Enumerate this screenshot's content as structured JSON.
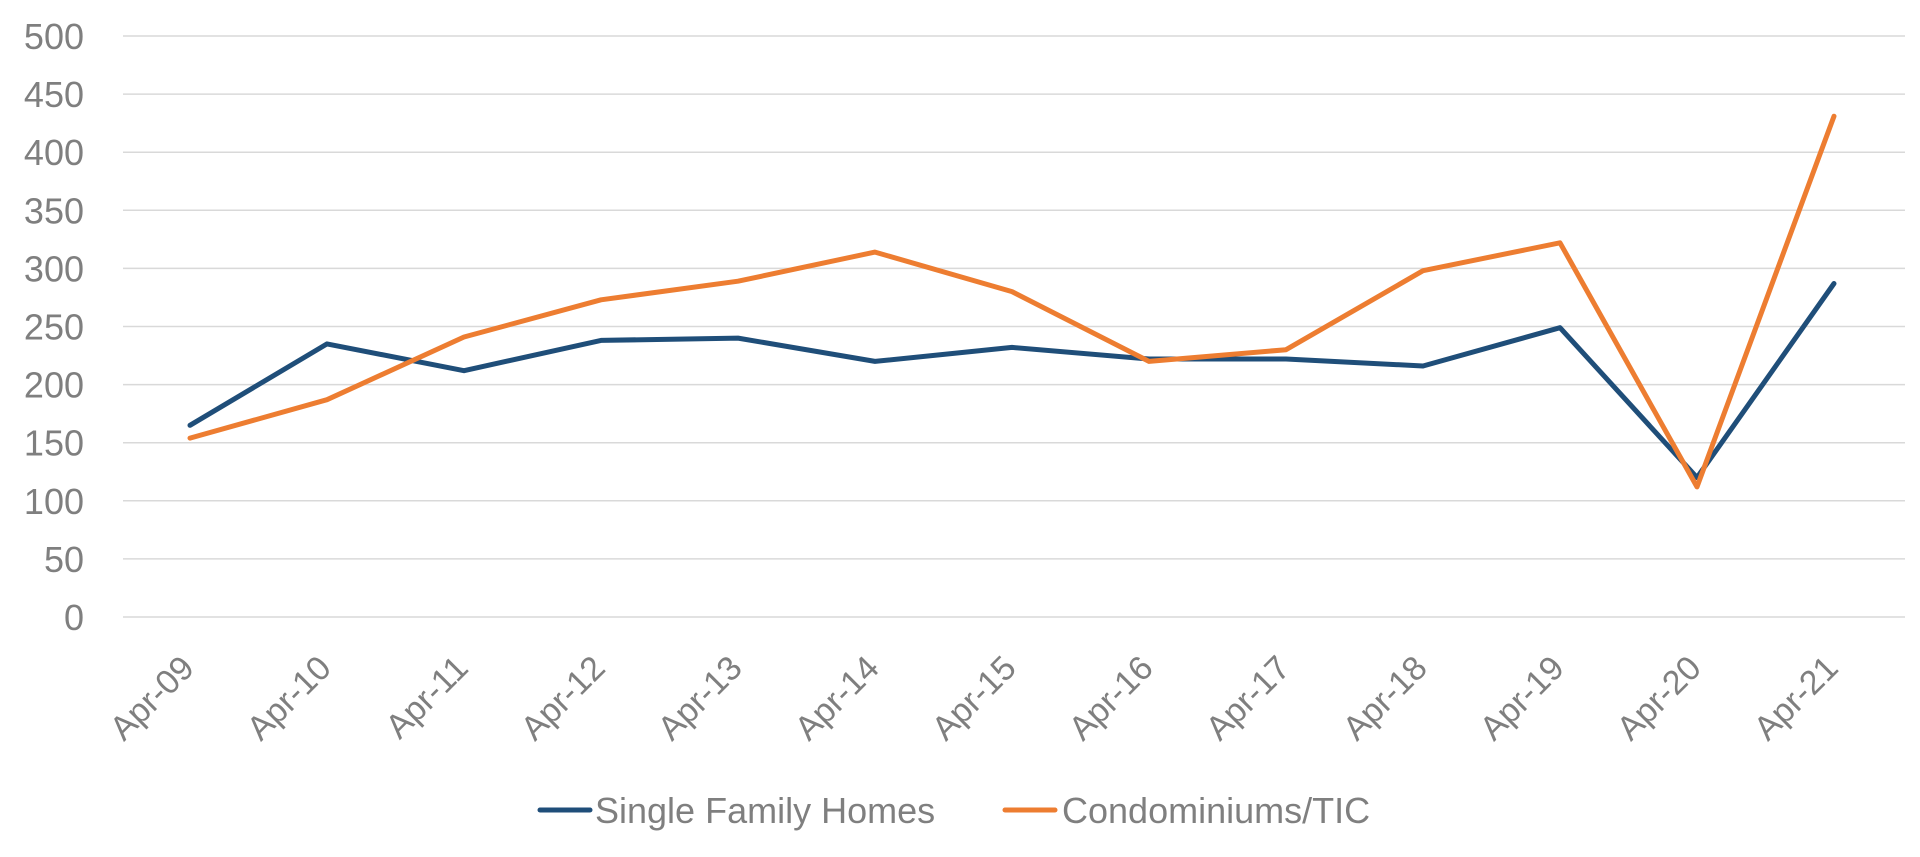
{
  "chart_data": {
    "type": "line",
    "categories": [
      "Apr-09",
      "Apr-10",
      "Apr-11",
      "Apr-12",
      "Apr-13",
      "Apr-14",
      "Apr-15",
      "Apr-16",
      "Apr-17",
      "Apr-18",
      "Apr-19",
      "Apr-20",
      "Apr-21"
    ],
    "series": [
      {
        "name": "Single Family Homes",
        "color": "#1f4e79",
        "values": [
          165,
          235,
          212,
          238,
          240,
          220,
          232,
          222,
          222,
          216,
          249,
          120,
          287
        ]
      },
      {
        "name": "Condominiums/TIC",
        "color": "#ed7d31",
        "values": [
          154,
          187,
          241,
          273,
          289,
          314,
          280,
          220,
          230,
          298,
          322,
          112,
          431
        ]
      }
    ],
    "yticks": [
      "0",
      "50",
      "100",
      "150",
      "200",
      "250",
      "300",
      "350",
      "400",
      "450",
      "500"
    ],
    "ylim": [
      0,
      500
    ],
    "grid": true,
    "legend_position": "bottom",
    "title": "",
    "xlabel": "",
    "ylabel": ""
  }
}
